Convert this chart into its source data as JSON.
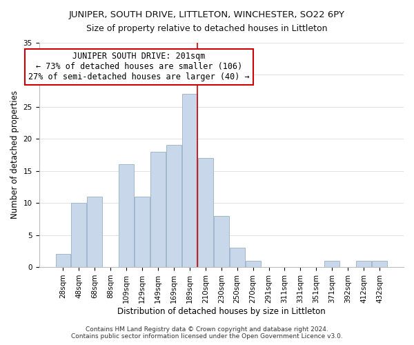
{
  "title": "JUNIPER, SOUTH DRIVE, LITTLETON, WINCHESTER, SO22 6PY",
  "subtitle": "Size of property relative to detached houses in Littleton",
  "xlabel": "Distribution of detached houses by size in Littleton",
  "ylabel": "Number of detached properties",
  "bar_labels": [
    "28sqm",
    "48sqm",
    "68sqm",
    "88sqm",
    "109sqm",
    "129sqm",
    "149sqm",
    "169sqm",
    "189sqm",
    "210sqm",
    "230sqm",
    "250sqm",
    "270sqm",
    "291sqm",
    "311sqm",
    "331sqm",
    "351sqm",
    "371sqm",
    "392sqm",
    "412sqm",
    "432sqm"
  ],
  "bar_values": [
    2,
    10,
    11,
    0,
    16,
    11,
    18,
    19,
    27,
    17,
    8,
    3,
    1,
    0,
    0,
    0,
    0,
    1,
    0,
    1,
    1
  ],
  "bar_color": "#c8d8ea",
  "bar_edge_color": "#a0b8cc",
  "vline_x": 9.0,
  "vline_color": "#cc0000",
  "ylim": [
    0,
    35
  ],
  "annotation_title": "JUNIPER SOUTH DRIVE: 201sqm",
  "annotation_line1": "← 73% of detached houses are smaller (106)",
  "annotation_line2": "27% of semi-detached houses are larger (40) →",
  "annotation_box_color": "#ffffff",
  "annotation_box_edge": "#cc0000",
  "footer1": "Contains HM Land Registry data © Crown copyright and database right 2024.",
  "footer2": "Contains public sector information licensed under the Open Government Licence v3.0.",
  "title_fontsize": 9.5,
  "subtitle_fontsize": 9,
  "axis_label_fontsize": 8.5,
  "tick_fontsize": 7.5,
  "annotation_fontsize": 8.5,
  "footer_fontsize": 6.5,
  "yticks": [
    0,
    5,
    10,
    15,
    20,
    25,
    30,
    35
  ]
}
